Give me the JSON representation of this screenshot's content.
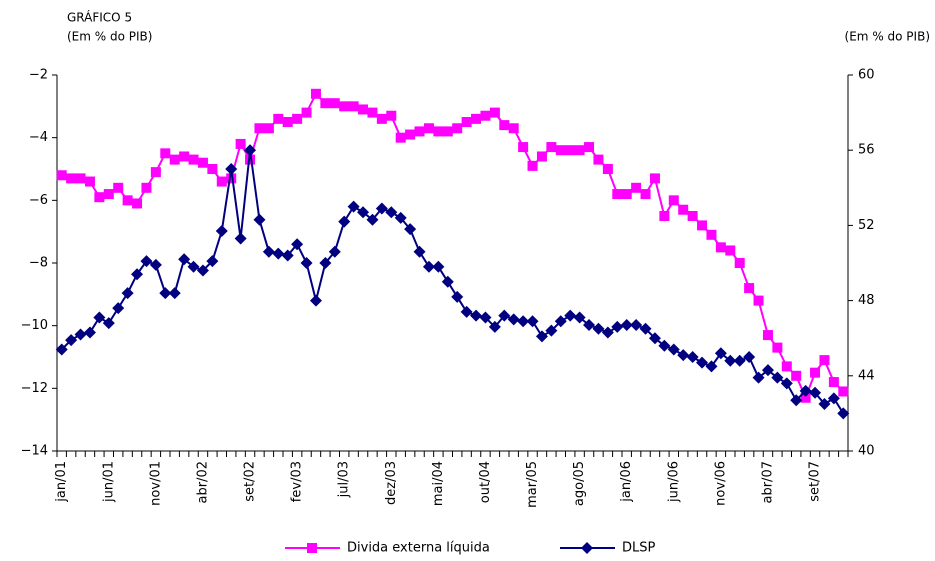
{
  "chart_data": {
    "type": "line",
    "title": "GRÁFICO 5",
    "y_label": "(Em % do PIB)",
    "y2_label": "(Em % do PIB)",
    "categories": [
      "jan/01",
      null,
      null,
      null,
      null,
      "jun/01",
      null,
      null,
      null,
      null,
      "nov/01",
      null,
      null,
      null,
      null,
      "abr/02",
      null,
      null,
      null,
      null,
      "set/02",
      null,
      null,
      null,
      null,
      "fev/03",
      null,
      null,
      null,
      null,
      "jul/03",
      null,
      null,
      null,
      null,
      "dez/03",
      null,
      null,
      null,
      null,
      "mai/04",
      null,
      null,
      null,
      null,
      "out/04",
      null,
      null,
      null,
      null,
      "mar/05",
      null,
      null,
      null,
      null,
      "ago/05",
      null,
      null,
      null,
      null,
      "jan/06",
      null,
      null,
      null,
      null,
      "jun/06",
      null,
      null,
      null,
      null,
      "nov/06",
      null,
      null,
      null,
      null,
      "abr/07",
      null,
      null,
      null,
      null,
      "set/07",
      null,
      null,
      null
    ],
    "series": [
      {
        "name": "Divida externa líquida",
        "color": "#ff00ff",
        "marker": "square",
        "values": [
          -5.2,
          -5.3,
          -5.3,
          -5.4,
          -5.9,
          -5.8,
          -5.6,
          -6.0,
          -6.1,
          -5.6,
          -5.1,
          -4.5,
          -4.7,
          -4.6,
          -4.7,
          -4.8,
          -5.0,
          -5.4,
          -5.3,
          -4.2,
          -4.7,
          -3.7,
          -3.7,
          -3.4,
          -3.5,
          -3.4,
          -3.2,
          -2.6,
          -2.9,
          -2.9,
          -3.0,
          -3.0,
          -3.1,
          -3.2,
          -3.4,
          -3.3,
          -4.0,
          -3.9,
          -3.8,
          -3.7,
          -3.8,
          -3.8,
          -3.7,
          -3.5,
          -3.4,
          -3.3,
          -3.2,
          -3.6,
          -3.7,
          -4.3,
          -4.9,
          -4.6,
          -4.3,
          -4.4,
          -4.4,
          -4.4,
          -4.3,
          -4.7,
          -5.0,
          -5.8,
          -5.8,
          -5.6,
          -5.8,
          -5.3,
          -6.5,
          -6.0,
          -6.3,
          -6.5,
          -6.8,
          -7.1,
          -7.5,
          -7.6,
          -8.0,
          -8.8,
          -9.2,
          -10.3,
          -10.7,
          -11.3,
          -11.6,
          -12.3,
          -11.5,
          -11.1,
          -11.8,
          -12.1
        ]
      },
      {
        "name": "DLSP",
        "color": "#000080",
        "marker": "diamond",
        "axis": "y2",
        "values": [
          45.4,
          45.9,
          46.2,
          46.3,
          47.1,
          46.8,
          47.6,
          48.4,
          49.4,
          50.1,
          49.9,
          48.4,
          48.4,
          50.2,
          49.8,
          49.6,
          50.1,
          51.7,
          55.0,
          51.3,
          56.0,
          52.3,
          50.6,
          50.5,
          50.4,
          51.0,
          50.0,
          48.0,
          50.0,
          50.6,
          52.2,
          53.0,
          52.7,
          52.3,
          52.9,
          52.7,
          52.4,
          51.8,
          50.6,
          49.8,
          49.8,
          49.0,
          48.2,
          47.4,
          47.2,
          47.1,
          46.6,
          47.2,
          47.0,
          46.9,
          46.9,
          46.1,
          46.4,
          46.9,
          47.2,
          47.1,
          46.7,
          46.5,
          46.3,
          46.6,
          46.7,
          46.7,
          46.5,
          46.0,
          45.6,
          45.4,
          45.1,
          45.0,
          44.7,
          44.5,
          45.2,
          44.8,
          44.8,
          45.0,
          43.9,
          44.3,
          43.9,
          43.6,
          42.7,
          43.2,
          43.1,
          42.5,
          42.8,
          42.0
        ]
      }
    ],
    "ylim": [
      -14,
      -2
    ],
    "yticks": [
      {
        "value": -14,
        "label": "−14"
      },
      {
        "value": -12,
        "label": "−12"
      },
      {
        "value": -10,
        "label": "−10"
      },
      {
        "value": -8,
        "label": "−8"
      },
      {
        "value": -6,
        "label": "−6"
      },
      {
        "value": -4,
        "label": "−4"
      },
      {
        "value": -2,
        "label": "−2"
      }
    ],
    "y2lim": [
      40,
      60
    ],
    "y2ticks": [
      40,
      44,
      48,
      52,
      56,
      60
    ],
    "grid": false,
    "legend": "bottom"
  }
}
